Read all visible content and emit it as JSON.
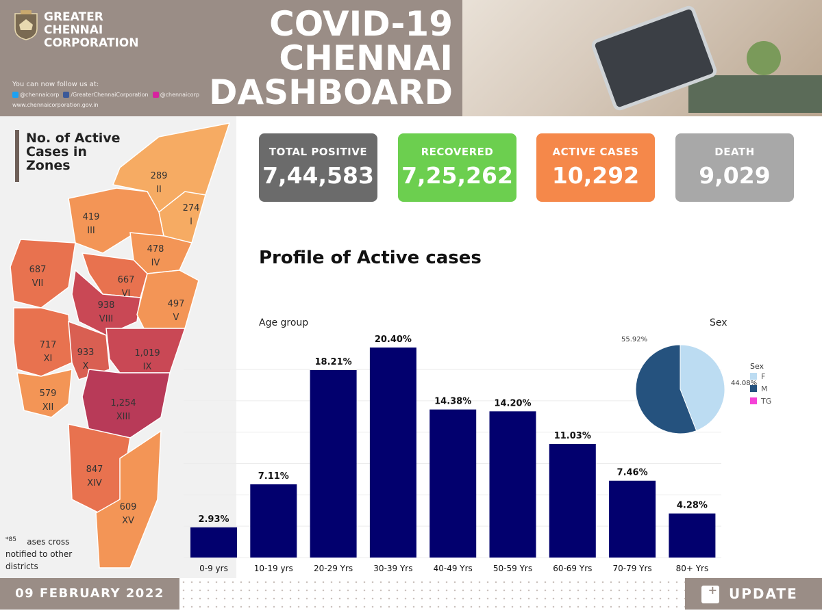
{
  "header": {
    "org_lines": [
      "GREATER",
      "CHENNAI",
      "CORPORATION"
    ],
    "title_lines": [
      "COVID-19",
      "CHENNAI",
      "DASHBOARD"
    ],
    "follow_text": "You can now follow us at:",
    "twitter": "@chennaicorp",
    "facebook": "/GreaterChennaiCorporation",
    "instagram": "@chennaicorp",
    "website": "www.chennaicorporation.gov.in"
  },
  "map": {
    "title_lines": [
      "No. of Active",
      "Cases in",
      "Zones"
    ],
    "zones": [
      {
        "count": "289",
        "roman": "II"
      },
      {
        "count": "274",
        "roman": "I"
      },
      {
        "count": "419",
        "roman": "III"
      },
      {
        "count": "478",
        "roman": "IV"
      },
      {
        "count": "687",
        "roman": "VII"
      },
      {
        "count": "667",
        "roman": "VI"
      },
      {
        "count": "938",
        "roman": "VIII"
      },
      {
        "count": "497",
        "roman": "V"
      },
      {
        "count": "717",
        "roman": "XI"
      },
      {
        "count": "933",
        "roman": "X"
      },
      {
        "count": "1,019",
        "roman": "IX"
      },
      {
        "count": "579",
        "roman": "XII"
      },
      {
        "count": "1,254",
        "roman": "XIII"
      },
      {
        "count": "847",
        "roman": "XIV"
      },
      {
        "count": "609",
        "roman": "XV"
      }
    ],
    "note_superscript": "*85",
    "note_lines": [
      "ases cross",
      "notified to other",
      "districts"
    ]
  },
  "stats": {
    "total_positive": {
      "label": "TOTAL POSITIVE",
      "value": "7,44,583",
      "color": "#6b6b6b"
    },
    "recovered": {
      "label": "RECOVERED",
      "value": "7,25,262",
      "color": "#6ccf4f"
    },
    "active": {
      "label": "ACTIVE CASES",
      "value": "10,292",
      "color": "#f5884a"
    },
    "death": {
      "label": "DEATH",
      "value": "9,029",
      "color": "#a8a8a8"
    }
  },
  "profile": {
    "title": "Profile of Active cases",
    "age_label": "Age group",
    "sex_label": "Sex"
  },
  "chart_data": [
    {
      "type": "bar",
      "title": "Age group",
      "categories": [
        "0-9 yrs",
        "10-19 yrs",
        "20-29 Yrs",
        "30-39 Yrs",
        "40-49 Yrs",
        "50-59 Yrs",
        "60-69 Yrs",
        "70-79 Yrs",
        "80+ Yrs"
      ],
      "values": [
        2.93,
        7.11,
        18.21,
        20.4,
        14.38,
        14.2,
        11.03,
        7.46,
        4.28
      ],
      "labels": [
        "2.93%",
        "7.11%",
        "18.21%",
        "20.40%",
        "14.38%",
        "14.20%",
        "11.03%",
        "7.46%",
        "4.28%"
      ],
      "ylim": [
        0,
        20.4
      ],
      "color": "#02006e",
      "grid": true
    },
    {
      "type": "pie",
      "title": "Sex",
      "legend_title": "Sex",
      "categories": [
        "F",
        "M",
        "TG"
      ],
      "values": [
        44.08,
        55.92,
        0
      ],
      "labels": [
        "44.08%",
        "55.92%",
        ""
      ],
      "colors": [
        "#bcdcf2",
        "#25527e",
        "#f542d7"
      ]
    }
  ],
  "footer": {
    "date": "09 FEBRUARY 2022",
    "update": "UPDATE"
  }
}
